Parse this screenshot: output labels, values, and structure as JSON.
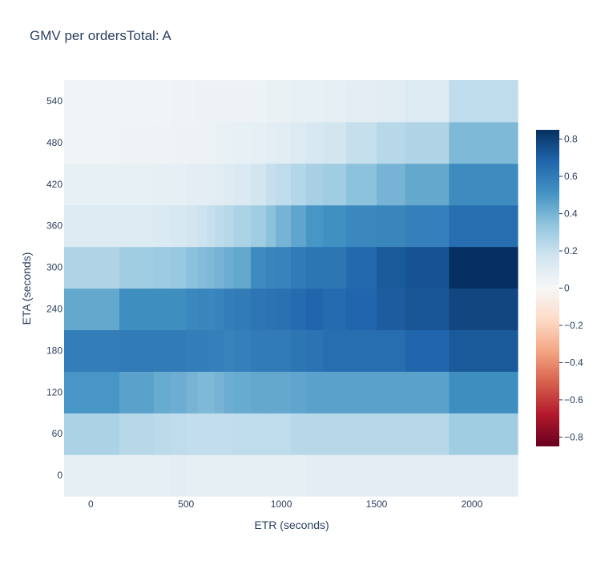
{
  "chart_data": {
    "type": "heatmap",
    "title": "GMV per ordersTotal: A",
    "xlabel": "ETR (seconds)",
    "ylabel": "ETA (seconds)",
    "x_tick_labels": [
      "0",
      "500",
      "1000",
      "1500",
      "2000"
    ],
    "x_ticks": [
      0,
      500,
      1000,
      1500,
      2000
    ],
    "y_tick_labels": [
      "0",
      "60",
      "120",
      "180",
      "240",
      "300",
      "360",
      "420",
      "480",
      "540"
    ],
    "y_categories": [
      0,
      60,
      120,
      180,
      240,
      300,
      360,
      420,
      480,
      540
    ],
    "x_bin_edges": [
      -140,
      150,
      330,
      420,
      500,
      560,
      610,
      650,
      700,
      750,
      840,
      920,
      970,
      1050,
      1130,
      1220,
      1340,
      1500,
      1650,
      1880,
      2240
    ],
    "z_range": [
      -0.85,
      0.85
    ],
    "colorbar_tick_labels": [
      "0.8",
      "0.6",
      "0.4",
      "0.2",
      "0",
      "−0.2",
      "−0.4",
      "−0.6",
      "−0.8"
    ],
    "colorbar_ticks": [
      0.8,
      0.6,
      0.4,
      0.2,
      0,
      -0.2,
      -0.4,
      -0.6,
      -0.8
    ],
    "colorscale": "RdBu",
    "z": [
      [
        0.08,
        0.08,
        0.08,
        0.09,
        0.08,
        0.08,
        0.08,
        0.08,
        0.08,
        0.08,
        0.08,
        0.08,
        0.08,
        0.08,
        0.09,
        0.09,
        0.09,
        0.09,
        0.09,
        0.09
      ],
      [
        0.27,
        0.24,
        0.23,
        0.22,
        0.21,
        0.21,
        0.21,
        0.21,
        0.21,
        0.22,
        0.22,
        0.22,
        0.22,
        0.24,
        0.24,
        0.24,
        0.24,
        0.24,
        0.24,
        0.3
      ],
      [
        0.5,
        0.46,
        0.43,
        0.42,
        0.4,
        0.38,
        0.38,
        0.4,
        0.42,
        0.43,
        0.44,
        0.44,
        0.44,
        0.45,
        0.46,
        0.46,
        0.46,
        0.46,
        0.46,
        0.53
      ],
      [
        0.59,
        0.6,
        0.6,
        0.6,
        0.59,
        0.59,
        0.58,
        0.58,
        0.57,
        0.58,
        0.6,
        0.6,
        0.6,
        0.62,
        0.63,
        0.65,
        0.65,
        0.65,
        0.68,
        0.72
      ],
      [
        0.44,
        0.53,
        0.53,
        0.53,
        0.55,
        0.56,
        0.55,
        0.57,
        0.59,
        0.6,
        0.62,
        0.63,
        0.64,
        0.66,
        0.68,
        0.66,
        0.68,
        0.71,
        0.73,
        0.78
      ],
      [
        0.26,
        0.3,
        0.31,
        0.32,
        0.35,
        0.37,
        0.38,
        0.4,
        0.42,
        0.44,
        0.54,
        0.56,
        0.57,
        0.6,
        0.62,
        0.62,
        0.67,
        0.72,
        0.74,
        0.85
      ],
      [
        0.11,
        0.12,
        0.13,
        0.14,
        0.16,
        0.18,
        0.2,
        0.22,
        0.24,
        0.27,
        0.3,
        0.35,
        0.4,
        0.45,
        0.5,
        0.52,
        0.55,
        0.56,
        0.58,
        0.65
      ],
      [
        0.07,
        0.07,
        0.08,
        0.08,
        0.09,
        0.09,
        0.09,
        0.1,
        0.11,
        0.13,
        0.16,
        0.2,
        0.22,
        0.25,
        0.28,
        0.3,
        0.35,
        0.4,
        0.44,
        0.54
      ],
      [
        0.03,
        0.04,
        0.04,
        0.05,
        0.05,
        0.05,
        0.05,
        0.06,
        0.06,
        0.07,
        0.08,
        0.09,
        0.1,
        0.12,
        0.14,
        0.16,
        0.2,
        0.24,
        0.26,
        0.38
      ],
      [
        0.03,
        0.03,
        0.03,
        0.04,
        0.04,
        0.05,
        0.05,
        0.05,
        0.05,
        0.05,
        0.05,
        0.06,
        0.06,
        0.07,
        0.07,
        0.08,
        0.09,
        0.1,
        0.12,
        0.22
      ]
    ]
  }
}
